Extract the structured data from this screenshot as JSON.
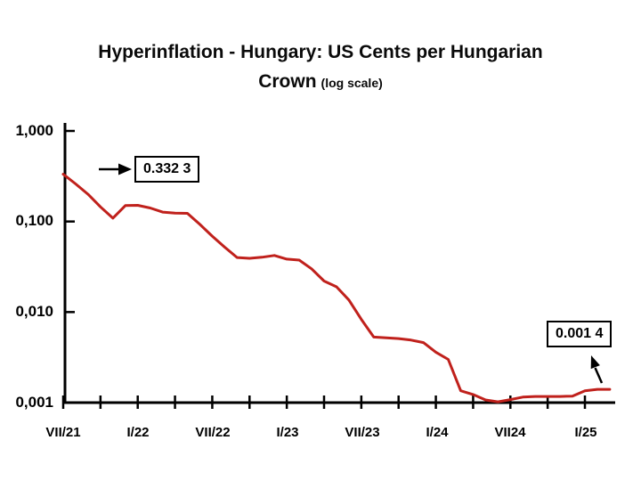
{
  "title": {
    "line1": "Hyperinflation - Hungary: US Cents per Hungarian",
    "line2_main": "Crown",
    "line2_note": "(log scale)"
  },
  "y_axis": {
    "tick_labels": [
      "1,000",
      "0,100",
      "0,010",
      "0,001"
    ]
  },
  "x_axis": {
    "tick_labels": [
      "VII/21",
      "I/22",
      "VII/22",
      "I/23",
      "VII/23",
      "I/24",
      "VII24",
      "I/25"
    ]
  },
  "colors": {
    "line": "#c0211c",
    "axis": "#000000",
    "background": "#ffffff"
  },
  "chart_data": {
    "type": "line",
    "title": "Hyperinflation - Hungary: US Cents per Hungarian Crown (log scale)",
    "xlabel": "",
    "ylabel": "",
    "y_scale": "log",
    "ylim": [
      0.001,
      1.0
    ],
    "y_tick_labels": [
      "1,000",
      "0,100",
      "0,010",
      "0,001"
    ],
    "x_tick_labels": [
      "VII/21",
      "I/22",
      "VII/22",
      "I/23",
      "VII/23",
      "I/24",
      "VII24",
      "I/25"
    ],
    "grid": false,
    "legend": false,
    "line_color": "#c0211c",
    "x": [
      "VII/21",
      "VIII/21",
      "IX/21",
      "X/21",
      "XI/21",
      "XII/21",
      "I/22",
      "II/22",
      "III/22",
      "IV/22",
      "V/22",
      "VI/22",
      "VII/22",
      "VIII/22",
      "IX/22",
      "X/22",
      "XI/22",
      "XII/22",
      "I/23",
      "II/23",
      "III/23",
      "IV/23",
      "V/23",
      "VI/23",
      "VII/23",
      "VIII/23",
      "IX/23",
      "X/23",
      "XI/23",
      "XII/23",
      "I/24",
      "II/24",
      "III/24",
      "IV/24",
      "V/24",
      "VI/24",
      "VII/24",
      "VIII/24",
      "IX/24",
      "X/24",
      "XI/24",
      "XII/24",
      "I/25",
      "II/25",
      "III/25"
    ],
    "values": [
      0.3323,
      0.26,
      0.2,
      0.145,
      0.109,
      0.15,
      0.151,
      0.141,
      0.127,
      0.124,
      0.123,
      0.093,
      0.069,
      0.052,
      0.04,
      0.0392,
      0.0403,
      0.0422,
      0.0384,
      0.0375,
      0.03,
      0.022,
      0.019,
      0.0136,
      0.0083,
      0.0053,
      0.0052,
      0.0051,
      0.0049,
      0.0046,
      0.0036,
      0.003,
      0.00135,
      0.00123,
      0.00107,
      0.00102,
      0.00108,
      0.00115,
      0.00117,
      0.00117,
      0.00117,
      0.00118,
      0.00135,
      0.0014,
      0.0014
    ],
    "annotations": [
      {
        "label": "0.332 3",
        "x": "VII/21",
        "value": 0.3323
      },
      {
        "label": "0.001 4",
        "x": "II/25",
        "value": 0.0014
      }
    ]
  }
}
